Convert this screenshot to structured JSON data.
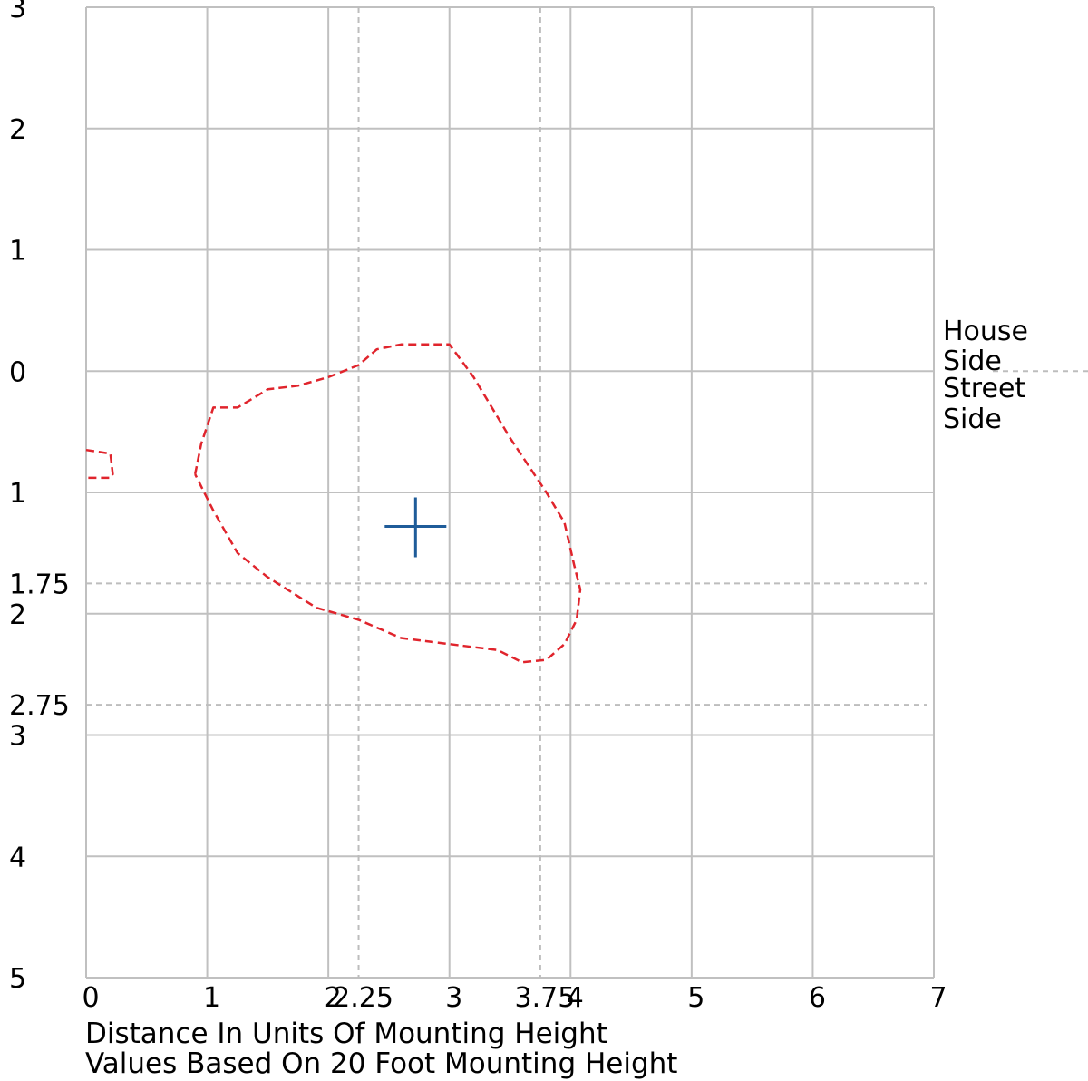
{
  "chart_data": {
    "type": "line",
    "title": "",
    "xlabel": "Distance In Units Of Mounting Height",
    "subtitle": "Values Based On 20 Foot Mounting Height",
    "xlim": [
      0,
      7
    ],
    "ylim": [
      -3,
      5
    ],
    "x_ticks": [
      {
        "value": 0,
        "label": "0"
      },
      {
        "value": 1,
        "label": "1"
      },
      {
        "value": 2,
        "label": "2"
      },
      {
        "value": 2.25,
        "label": "2.25"
      },
      {
        "value": 3,
        "label": "3"
      },
      {
        "value": 3.75,
        "label": "3.75"
      },
      {
        "value": 4,
        "label": "4"
      },
      {
        "value": 5,
        "label": "5"
      },
      {
        "value": 6,
        "label": "6"
      },
      {
        "value": 7,
        "label": "7"
      }
    ],
    "y_ticks": [
      {
        "value": -3,
        "label": "3"
      },
      {
        "value": -2,
        "label": "2"
      },
      {
        "value": -1,
        "label": "1"
      },
      {
        "value": 0,
        "label": "0"
      },
      {
        "value": 1,
        "label": "1"
      },
      {
        "value": 1.75,
        "label": "1.75"
      },
      {
        "value": 2,
        "label": "2"
      },
      {
        "value": 2.75,
        "label": "2.75"
      },
      {
        "value": 3,
        "label": "3"
      },
      {
        "value": 4,
        "label": "4"
      },
      {
        "value": 5,
        "label": "5"
      }
    ],
    "grid_x": [
      0,
      1,
      2,
      3,
      4,
      5,
      6,
      7
    ],
    "grid_y": [
      -3,
      -2,
      -1,
      0,
      1,
      2,
      3,
      4,
      5
    ],
    "ref_lines_x": [
      2.25,
      3.75
    ],
    "ref_lines_y": [
      1.75,
      2.75
    ],
    "side_labels": {
      "house": "House Side",
      "street": "Street Side"
    },
    "colors": {
      "grid": "#c0c0c0",
      "ref": "#bdbdbd",
      "contour": "#e0242c",
      "marker": "#1f5c99"
    },
    "marker": {
      "x": 2.72,
      "y": 1.28
    },
    "series": [
      {
        "style": "dashed",
        "x": [
          0.0,
          0.2,
          0.22,
          0.2,
          0.0
        ],
        "y": [
          0.65,
          0.68,
          0.85,
          0.88,
          0.88
        ]
      },
      {
        "style": "dashed",
        "x": [
          0.9,
          0.95,
          1.05,
          1.25,
          1.5,
          1.75,
          2.0,
          2.25,
          2.4,
          2.6,
          2.8,
          3.0,
          3.2,
          3.35,
          3.5,
          3.7,
          3.8,
          3.95,
          4.03,
          4.08,
          4.05,
          3.95,
          3.8,
          3.6,
          3.4,
          3.0,
          2.6,
          2.25,
          1.9,
          1.5,
          1.25,
          1.05,
          0.9
        ],
        "y": [
          0.85,
          0.6,
          0.3,
          0.3,
          0.15,
          0.12,
          0.05,
          -0.05,
          -0.18,
          -0.22,
          -0.22,
          -0.22,
          0.05,
          0.3,
          0.55,
          0.85,
          1.0,
          1.25,
          1.6,
          1.8,
          2.05,
          2.25,
          2.38,
          2.4,
          2.3,
          2.25,
          2.2,
          2.05,
          1.95,
          1.7,
          1.5,
          1.15,
          0.85
        ]
      }
    ]
  }
}
